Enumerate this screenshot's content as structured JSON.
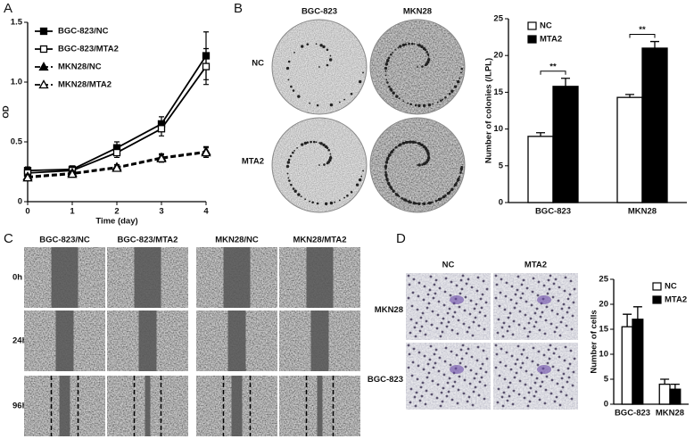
{
  "panel_labels": [
    "A",
    "B",
    "C",
    "D"
  ],
  "chart_data": [
    {
      "type": "line",
      "x_label": "Time (day)",
      "y_label": "OD",
      "x": [
        0,
        1,
        2,
        3,
        4
      ],
      "xlim": [
        0,
        4
      ],
      "xticks": [
        0,
        1,
        2,
        3,
        4
      ],
      "ylim": [
        0,
        1.5
      ],
      "yticks": [
        0,
        0.5,
        {
          "value": 1,
          "label": "1.0"
        },
        1.5
      ],
      "legend": "upper left",
      "series": [
        {
          "name": "BGC-823/NC",
          "color": "#000000",
          "marker": "square",
          "filled": true,
          "linestyle": "solid",
          "values": [
            0.26,
            0.27,
            0.45,
            0.65,
            1.22
          ],
          "errors": [
            0.03,
            0.03,
            0.05,
            0.06,
            0.2
          ]
        },
        {
          "name": "BGC-823/MTA2",
          "color": "#000000",
          "marker": "square",
          "filled": false,
          "linestyle": "solid",
          "values": [
            0.24,
            0.26,
            0.41,
            0.61,
            1.13
          ],
          "errors": [
            0.02,
            0.02,
            0.04,
            0.06,
            0.15
          ]
        },
        {
          "name": "MKN28/NC",
          "color": "#000000",
          "marker": "triangle",
          "filled": true,
          "linestyle": "dashed",
          "values": [
            0.21,
            0.24,
            0.29,
            0.37,
            0.42
          ],
          "errors": [
            0.02,
            0.02,
            0.02,
            0.03,
            0.04
          ]
        },
        {
          "name": "MKN28/MTA2",
          "color": "#000000",
          "marker": "triangle",
          "filled": false,
          "linestyle": "dashed",
          "values": [
            0.2,
            0.23,
            0.28,
            0.36,
            0.41
          ],
          "errors": [
            0.02,
            0.02,
            0.02,
            0.03,
            0.04
          ]
        }
      ]
    },
    {
      "type": "bar",
      "y_label": "Number of colonies (/LPL)",
      "categories": [
        "BGC-823",
        "MKN28"
      ],
      "ylim": [
        0,
        25
      ],
      "yticks": [
        0,
        5,
        10,
        15,
        20,
        25
      ],
      "legend": "upper left",
      "annotations": [
        "**",
        "**"
      ],
      "series": [
        {
          "name": "NC",
          "color": "#ffffff",
          "values": [
            9,
            14.3
          ],
          "errors": [
            0.5,
            0.4
          ]
        },
        {
          "name": "MTA2",
          "color": "#000000",
          "values": [
            15.8,
            21
          ],
          "errors": [
            1.1,
            0.9
          ]
        }
      ]
    },
    {
      "type": "bar",
      "y_label": "Number of cells",
      "categories": [
        "BGC-823",
        "MKN28"
      ],
      "ylim": [
        0,
        25
      ],
      "yticks": [
        0,
        5,
        10,
        15,
        20,
        25
      ],
      "legend": "upper right",
      "series": [
        {
          "name": "NC",
          "color": "#ffffff",
          "values": [
            15.5,
            4
          ],
          "errors": [
            2.5,
            1
          ]
        },
        {
          "name": "MTA2",
          "color": "#000000",
          "values": [
            17,
            3
          ],
          "errors": [
            2.5,
            1
          ]
        }
      ]
    }
  ],
  "colony_images": {
    "columns": [
      "BGC-823",
      "MKN28"
    ],
    "rows": [
      "NC",
      "MTA2"
    ]
  },
  "wound_images": {
    "columns": [
      "BGC-823/NC",
      "BGC-823/MTA2",
      "MKN28/NC",
      "MKN28/MTA2"
    ],
    "rows": [
      "0h",
      "24h",
      "96h"
    ]
  },
  "transwell_images": {
    "columns": [
      "NC",
      "MTA2"
    ],
    "rows": [
      "MKN28",
      "BGC-823"
    ]
  }
}
